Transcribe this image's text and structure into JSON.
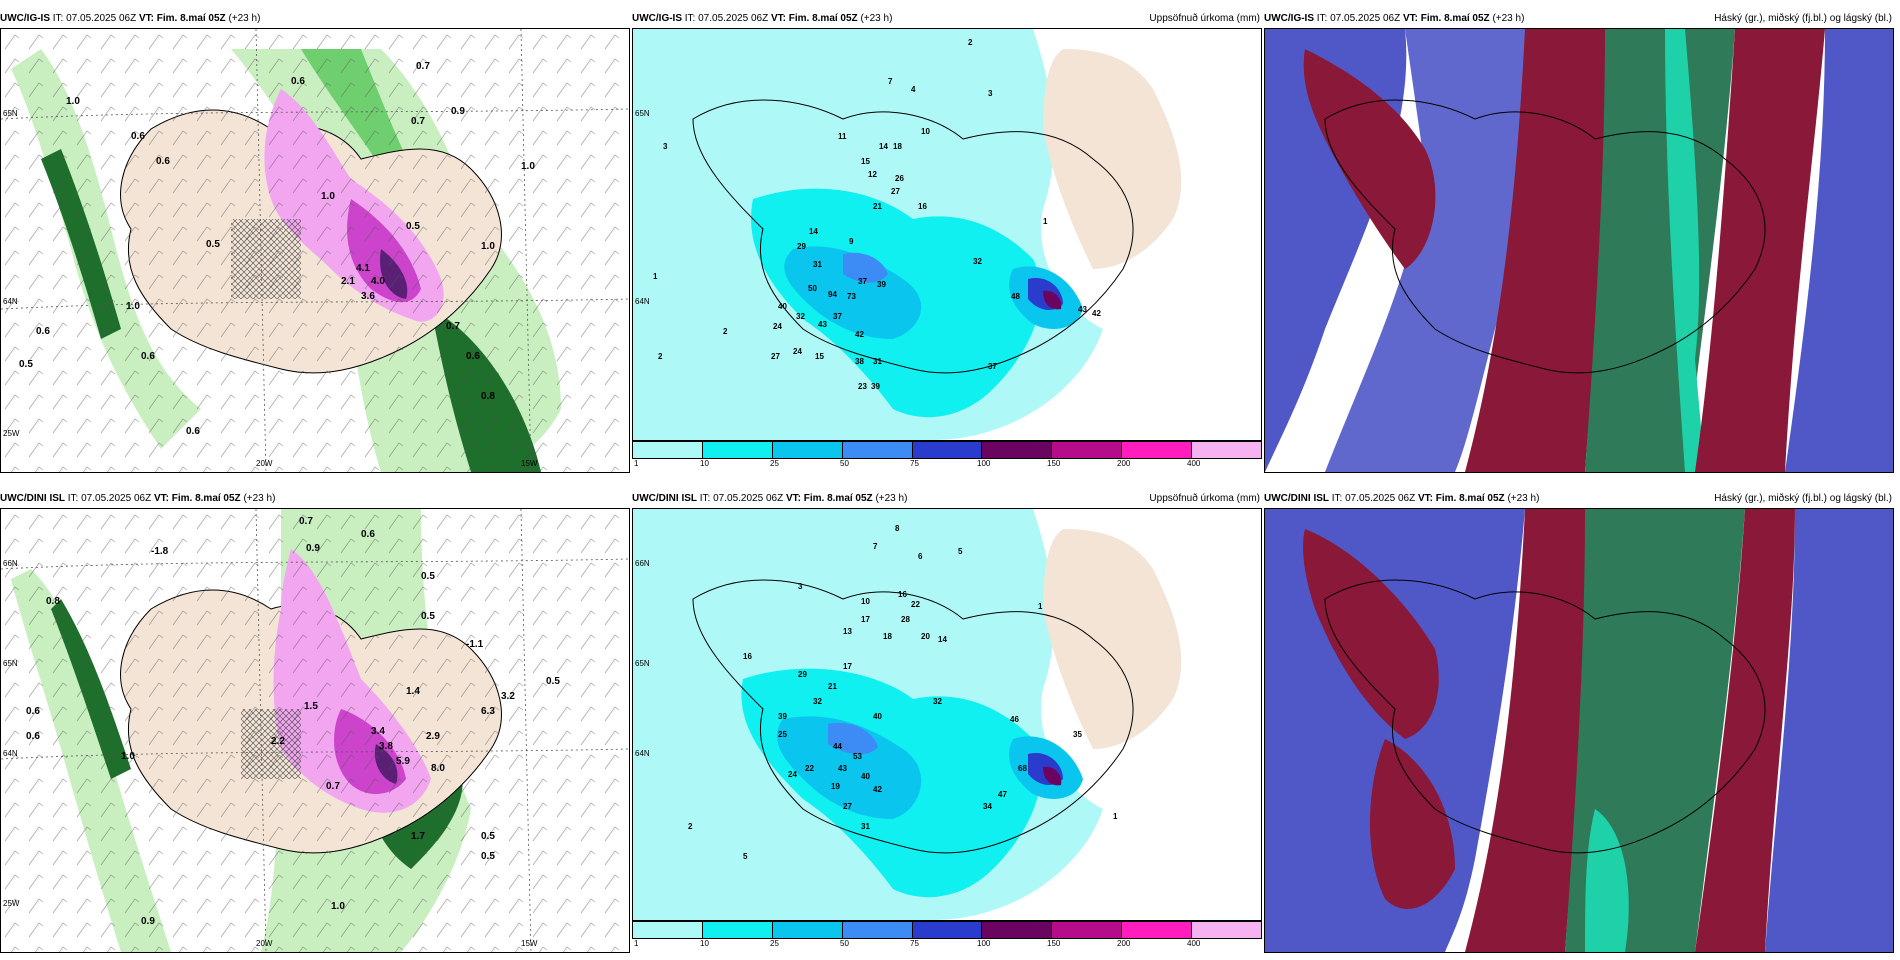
{
  "panels": [
    {
      "id": "p1",
      "model": "UWC/IG-IS",
      "it_label": "IT:",
      "it_value": "07.05.2025 06Z",
      "vt_label": "VT:",
      "vt_value": "Fim. 8.maí 05Z",
      "lead": "(+23 h)",
      "title": "",
      "coords": [
        "65N",
        "64N",
        "25W",
        "20W",
        "15W"
      ],
      "values": [
        "1.0",
        "0.6",
        "0.6",
        "0.9",
        "0.7",
        "0.7",
        "0.6",
        "1.0",
        "2.1",
        "3.6",
        "4.0",
        "4.1",
        "0.5",
        "0.6",
        "0.6",
        "0.5",
        "1.0",
        "0.8",
        "0.6",
        "1.0",
        "1.0",
        "0.6",
        "0.7",
        "0.5"
      ]
    },
    {
      "id": "p2",
      "model": "UWC/IG-IS",
      "it_label": "IT:",
      "it_value": "07.05.2025 06Z",
      "vt_label": "VT:",
      "vt_value": "Fim. 8.maí 05Z",
      "lead": "(+23 h)",
      "title": "Uppsöfnuð úrkoma (mm)",
      "coords": [
        "65N",
        "64N"
      ],
      "values": [
        "7",
        "4",
        "3",
        "2",
        "11",
        "10",
        "15",
        "18",
        "14",
        "12",
        "26",
        "27",
        "21",
        "16",
        "9",
        "14",
        "29",
        "31",
        "37",
        "50",
        "94",
        "73",
        "39",
        "40",
        "24",
        "32",
        "43",
        "37",
        "42",
        "48",
        "43",
        "42",
        "27",
        "24",
        "15",
        "38",
        "23",
        "39",
        "31",
        "37",
        "32",
        "2",
        "3",
        "1",
        "2",
        "1"
      ],
      "colorbar": {
        "labels": [
          "1",
          "10",
          "25",
          "50",
          "75",
          "100",
          "150",
          "200",
          "400"
        ],
        "colors": [
          "#aef9f7",
          "#10f0f0",
          "#0ac6ee",
          "#3d8cf5",
          "#2a3ccc",
          "#6b0460",
          "#b50c8a",
          "#ff1ebd",
          "#f5b3f2"
        ]
      }
    },
    {
      "id": "p3",
      "model": "UWC/IG-IS",
      "it_label": "IT:",
      "it_value": "07.05.2025 06Z",
      "vt_label": "VT:",
      "vt_value": "Fim. 8.maí 05Z",
      "lead": "(+23 h)",
      "title": "Háský (gr.), miðský (fj.bl.) og lágský (bl.)"
    },
    {
      "id": "p4",
      "model": "UWC/DINI ISL",
      "it_label": "IT:",
      "it_value": "07.05.2025 06Z",
      "vt_label": "VT:",
      "vt_value": "Fim. 8.maí 05Z",
      "lead": "(+23 h)",
      "title": "",
      "coords": [
        "66N",
        "65N",
        "64N",
        "25W",
        "20W",
        "15W"
      ],
      "values": [
        "0.7",
        "0.6",
        "0.5",
        "-1.8",
        "0.8",
        "-1.1",
        "1.0",
        "0.6",
        "0.9",
        "0.5",
        "1.5",
        "1.4",
        "2.2",
        "3.4",
        "3.8",
        "5.9",
        "2.9",
        "8.0",
        "6.3",
        "3.2",
        "0.5",
        "0.6",
        "0.9",
        "1.0",
        "0.5",
        "0.7",
        "1.7",
        "0.5"
      ]
    },
    {
      "id": "p5",
      "model": "UWC/DINI ISL",
      "it_label": "IT:",
      "it_value": "07.05.2025 06Z",
      "vt_label": "VT:",
      "vt_value": "Fim. 8.maí 05Z",
      "lead": "(+23 h)",
      "title": "Uppsöfnuð úrkoma (mm)",
      "coords": [
        "66N",
        "65N",
        "64N"
      ],
      "values": [
        "8",
        "7",
        "6",
        "5",
        "3",
        "1",
        "10",
        "16",
        "22",
        "28",
        "17",
        "13",
        "18",
        "20",
        "14",
        "16",
        "29",
        "21",
        "17",
        "32",
        "40",
        "46",
        "35",
        "32",
        "39",
        "25",
        "44",
        "53",
        "43",
        "68",
        "22",
        "24",
        "19",
        "40",
        "42",
        "34",
        "47",
        "27",
        "31",
        "2",
        "5",
        "1"
      ],
      "colorbar": {
        "labels": [
          "1",
          "10",
          "25",
          "50",
          "75",
          "100",
          "150",
          "200",
          "400"
        ],
        "colors": [
          "#aef9f7",
          "#10f0f0",
          "#0ac6ee",
          "#3d8cf5",
          "#2a3ccc",
          "#6b0460",
          "#b50c8a",
          "#ff1ebd",
          "#f5b3f2"
        ]
      }
    },
    {
      "id": "p6",
      "model": "UWC/DINI ISL",
      "it_label": "IT:",
      "it_value": "07.05.2025 06Z",
      "vt_label": "VT:",
      "vt_value": "Fim. 8.maí 05Z",
      "lead": "(+23 h)",
      "title": "Háský (gr.), miðský (fj.bl.) og lágský (bl.)"
    }
  ],
  "colors": {
    "land": "#f3e4d6",
    "green_light": "#c9efc0",
    "green_mid": "#6fcf6e",
    "green_dark": "#1e6e2c",
    "magenta_light": "#f2a6f0",
    "magenta": "#cc44cc",
    "purple_dark": "#5a2075",
    "cloud_high": "#8a1838",
    "cloud_mid": "#2f7a58",
    "cloud_low": "#5058c8",
    "cloud_teal": "#1fd1a8"
  }
}
